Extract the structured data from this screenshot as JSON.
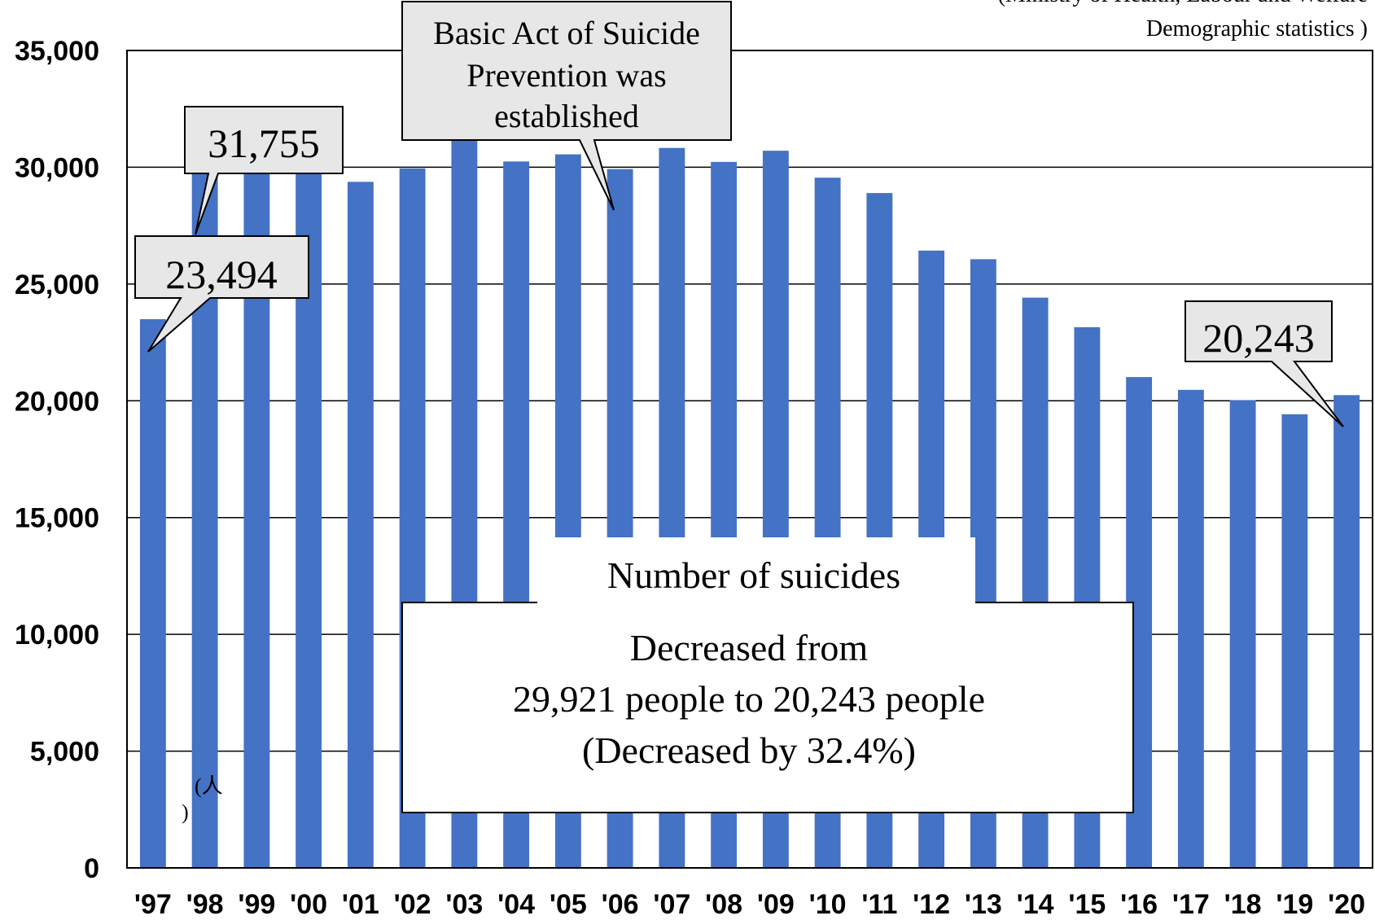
{
  "source_note": [
    "(Ministry of Health, Labour and Welfare",
    "Demographic statistics )"
  ],
  "unit_mark": [
    "(人",
    ")"
  ],
  "colors": {
    "bar": "#4472C4",
    "callout_fill": "#E7E7E7",
    "box_fill": "#FFFFFF"
  },
  "callouts": [
    {
      "text": "23,494",
      "target_index": 0
    },
    {
      "text": "31,755",
      "target_index": 1
    },
    {
      "text": "20,243",
      "target_index": 23
    }
  ],
  "act_callout": [
    "Basic Act of Suicide",
    "Prevention was",
    "established"
  ],
  "summary_box": {
    "title": "Number of suicides",
    "lines": [
      "Decreased from",
      "29,921 people to 20,243 people",
      "(Decreased by 32.4%)"
    ]
  },
  "chart_data": {
    "type": "bar",
    "title": "",
    "xlabel": "",
    "ylabel": "",
    "categories": [
      "'97",
      "'98",
      "'99",
      "'00",
      "'01",
      "'02",
      "'03",
      "'04",
      "'05",
      "'06",
      "'07",
      "'08",
      "'09",
      "'10",
      "'11",
      "'12",
      "'13",
      "'14",
      "'15",
      "'16",
      "'17",
      "'18",
      "'19",
      "'20"
    ],
    "values": [
      23494,
      31755,
      31413,
      31957,
      29375,
      29949,
      32109,
      30247,
      30553,
      29921,
      30827,
      30229,
      30707,
      29554,
      28896,
      26433,
      26063,
      24417,
      23152,
      21017,
      20468,
      20031,
      19425,
      20243
    ],
    "ylim": [
      0,
      35000
    ],
    "yticks": [
      0,
      5000,
      10000,
      15000,
      20000,
      25000,
      30000,
      35000
    ],
    "ytick_labels": [
      "0",
      "5,000",
      "10,000",
      "15,000",
      "20,000",
      "25,000",
      "30,000",
      "35,000"
    ],
    "grid": true,
    "legend": "none"
  }
}
